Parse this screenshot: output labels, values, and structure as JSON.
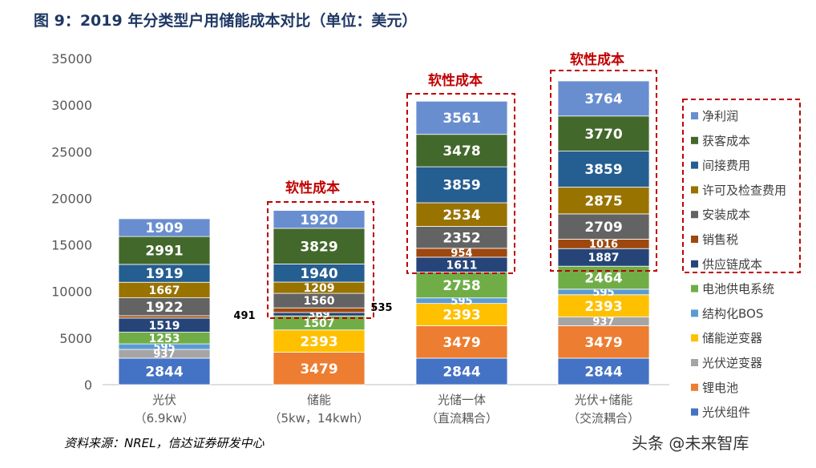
{
  "title": "图 9：2019 年分类型户用储能成本对比（单位：美元）",
  "source": "资料来源：NREL，信达证券研发中心",
  "watermark": "头条 @未来智库",
  "chart_data": {
    "type": "bar",
    "stacked": true,
    "ylim": [
      0,
      35000
    ],
    "yticks": [
      0,
      5000,
      10000,
      15000,
      20000,
      25000,
      30000,
      35000
    ],
    "categories": [
      [
        "光伏",
        "（6.9kw）"
      ],
      [
        "储能",
        "（5kw，14kwh）"
      ],
      [
        "光储一体",
        "（直流耦合）"
      ],
      [
        "光伏+储能",
        "（交流耦合）"
      ]
    ],
    "series": [
      {
        "name": "光伏组件",
        "color": "#4472c4",
        "values": [
          2844,
          0,
          2844,
          2844
        ]
      },
      {
        "name": "锂电池",
        "color": "#ed7d31",
        "values": [
          0,
          3479,
          3479,
          3479
        ]
      },
      {
        "name": "光伏逆变器",
        "color": "#a5a5a5",
        "values": [
          937,
          0,
          0,
          937
        ]
      },
      {
        "name": "储能逆变器",
        "color": "#ffc000",
        "values": [
          0,
          2393,
          2393,
          2393
        ]
      },
      {
        "name": "结构化BOS",
        "color": "#5b9bd5",
        "values": [
          595,
          0,
          595,
          595
        ]
      },
      {
        "name": "电池供电系统",
        "color": "#70ad47",
        "values": [
          1253,
          1507,
          2758,
          2464
        ]
      },
      {
        "name": "供应链成本",
        "color": "#264478",
        "values": [
          1519,
          369,
          1611,
          1887
        ]
      },
      {
        "name": "销售税",
        "color": "#9e480e",
        "values": [
          250,
          491,
          954,
          1016
        ]
      },
      {
        "name": "安装成本",
        "color": "#636363",
        "values": [
          1922,
          1560,
          2352,
          2709
        ]
      },
      {
        "name": "许可及检查费用",
        "color": "#997300",
        "values": [
          1667,
          1209,
          2534,
          2875
        ]
      },
      {
        "name": "间接费用",
        "color": "#255e91",
        "values": [
          1919,
          1940,
          3859,
          3859
        ]
      },
      {
        "name": "获客成本",
        "color": "#43682b",
        "values": [
          2991,
          3829,
          3478,
          3770
        ]
      },
      {
        "name": "净利润",
        "color": "#698ed0",
        "values": [
          1909,
          1920,
          3561,
          3764
        ]
      }
    ],
    "segment_labels": [
      [
        "2844",
        "",
        "937",
        "",
        "595",
        "1253",
        "1519",
        "",
        "1922",
        "1667",
        "1919",
        "2991",
        "1909"
      ],
      [
        "",
        "3479",
        "",
        "2393",
        "",
        "1507",
        "369",
        "",
        "1560",
        "1209",
        "1940",
        "3829",
        "1920"
      ],
      [
        "2844",
        "3479",
        "",
        "2393",
        "595",
        "2758",
        "1611",
        "954",
        "2352",
        "2534",
        "3859",
        "3478",
        "3561"
      ],
      [
        "2844",
        "3479",
        "937",
        "2393",
        "595",
        "2464",
        "1887",
        "1016",
        "2709",
        "2875",
        "3859",
        "3770",
        "3764"
      ]
    ],
    "annotations": [
      "软性成本",
      "软性成本",
      "软性成本"
    ],
    "side_labels": [
      "491",
      "535"
    ]
  }
}
